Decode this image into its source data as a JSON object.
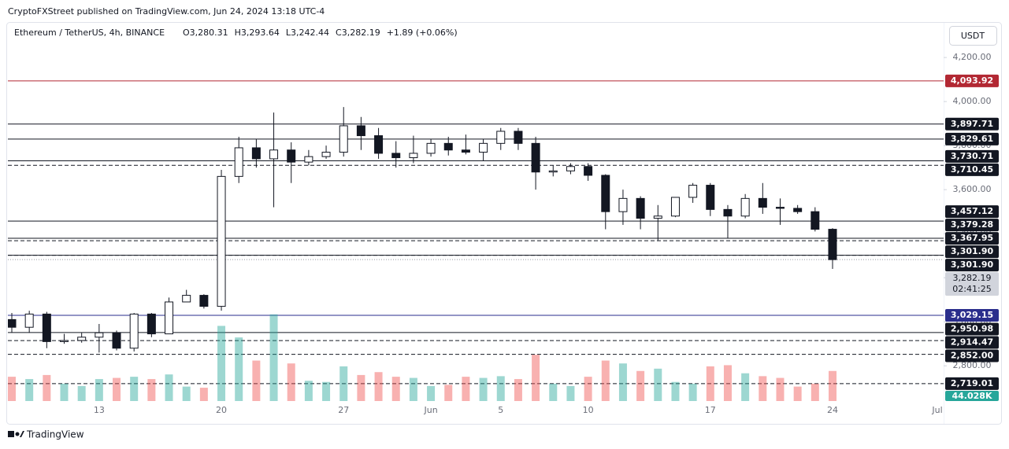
{
  "attribution": "CryptoFXStreet published on TradingView.com, Jun 24, 2024 13:18 UTC-4",
  "currency_button": "USDT",
  "footer": "TradingView",
  "chart_data": {
    "type": "candlestick",
    "symbol": "Ethereum / TetherUS, 4h, BINANCE",
    "ohlc_text": [
      "O3,280.31",
      "H3,293.64",
      "L3,242.44",
      "C3,282.19",
      "+1.89 (+0.06%)"
    ],
    "categories": [
      null,
      null,
      null,
      null,
      null,
      "13",
      null,
      null,
      null,
      null,
      null,
      null,
      "20",
      null,
      null,
      null,
      null,
      null,
      null,
      "27",
      null,
      null,
      null,
      null,
      "Jun",
      null,
      null,
      null,
      "5",
      null,
      null,
      null,
      null,
      "10",
      null,
      null,
      null,
      null,
      null,
      null,
      "17",
      null,
      null,
      null,
      null,
      null,
      null,
      "24",
      null,
      null,
      null,
      null,
      null,
      "Jul"
    ],
    "open": [
      3010,
      2975,
      3035,
      2910,
      2915,
      2930,
      2950,
      2880,
      3035,
      2945,
      3090,
      3120,
      3070,
      3660,
      3790,
      3740,
      3780,
      3725,
      3750,
      3770,
      3890,
      3845,
      3765,
      3745,
      3765,
      3810,
      3780,
      3770,
      3810,
      3865,
      3810,
      3680,
      3685,
      3705,
      3665,
      3500,
      3560,
      3470,
      3480,
      3565,
      3620,
      3510,
      3480,
      3560,
      3520,
      3515,
      3500,
      3420,
      null,
      null,
      null,
      null,
      null,
      null
    ],
    "high": [
      3040,
      3050,
      3045,
      2945,
      2950,
      2990,
      2960,
      3040,
      3040,
      3110,
      3145,
      3125,
      3690,
      3840,
      3830,
      3950,
      3815,
      3780,
      3800,
      3975,
      3930,
      3880,
      3820,
      3845,
      3830,
      3840,
      3850,
      3830,
      3880,
      3880,
      3840,
      3710,
      3720,
      3720,
      3670,
      3600,
      3570,
      3530,
      3560,
      3630,
      3630,
      3530,
      3580,
      3630,
      3560,
      3530,
      3520,
      3425,
      null,
      null,
      null,
      null,
      null,
      null
    ],
    "low": [
      2950,
      2950,
      2880,
      2900,
      2905,
      2860,
      2870,
      2865,
      2930,
      2945,
      3090,
      3060,
      3050,
      3630,
      3700,
      3520,
      3630,
      3710,
      3740,
      3750,
      3780,
      3740,
      3700,
      3720,
      3750,
      3755,
      3760,
      3730,
      3780,
      3780,
      3600,
      3660,
      3670,
      3640,
      3420,
      3440,
      3420,
      3370,
      3475,
      3540,
      3480,
      3380,
      3470,
      3490,
      3440,
      3490,
      3410,
      3240,
      null,
      null,
      null,
      null,
      null,
      null
    ],
    "close": [
      2975,
      3035,
      2910,
      2915,
      2930,
      2950,
      2880,
      3035,
      2945,
      3090,
      3120,
      3070,
      3660,
      3790,
      3740,
      3780,
      3725,
      3750,
      3770,
      3890,
      3845,
      3765,
      3745,
      3765,
      3810,
      3780,
      3770,
      3810,
      3865,
      3810,
      3680,
      3685,
      3705,
      3665,
      3500,
      3560,
      3470,
      3480,
      3565,
      3620,
      3510,
      3480,
      3560,
      3520,
      3515,
      3500,
      3420,
      3282.19,
      null,
      null,
      null,
      null,
      null,
      null
    ],
    "volume": [
      420,
      380,
      450,
      300,
      260,
      380,
      400,
      420,
      380,
      460,
      250,
      230,
      1300,
      1100,
      700,
      1500,
      650,
      350,
      330,
      600,
      450,
      500,
      420,
      400,
      260,
      280,
      420,
      400,
      430,
      380,
      800,
      300,
      260,
      420,
      700,
      650,
      520,
      560,
      330,
      300,
      600,
      620,
      480,
      430,
      400,
      250,
      300,
      520,
      null,
      null,
      null,
      null,
      null,
      null
    ],
    "volume_label": "44.028K",
    "up_color": "#26a69a",
    "down_color": "#ef5350",
    "ylim": [
      2640,
      4354
    ],
    "volume_ylim": [
      0,
      1700
    ],
    "yticks": [
      {
        "value": 2800,
        "label": "2,800.00"
      },
      {
        "value": 3000,
        "label": "3,000.00"
      },
      {
        "value": 3200,
        "label": "3,200.00"
      },
      {
        "value": 3400,
        "label": "3,400.00"
      },
      {
        "value": 3600,
        "label": "3,600.00"
      },
      {
        "value": 3800,
        "label": "3,800.00"
      },
      {
        "value": 4000,
        "label": "4,000.00"
      },
      {
        "value": 4200,
        "label": "4,200.00"
      }
    ],
    "grid": false,
    "levels": [
      {
        "value": 4093.92,
        "label": "4,093.92",
        "color": "#b22833",
        "style": "solid"
      },
      {
        "value": 3897.71,
        "label": "3,897.71",
        "color": "#131722",
        "style": "solid"
      },
      {
        "value": 3829.61,
        "label": "3,829.61",
        "color": "#131722",
        "style": "solid"
      },
      {
        "value": 3730.71,
        "label": "3,730.71",
        "color": "#131722",
        "style": "solid"
      },
      {
        "value": 3710.45,
        "label": "3,710.45",
        "color": "#131722",
        "style": "dashed"
      },
      {
        "value": 3457.12,
        "label": "3,457.12",
        "color": "#131722",
        "style": "solid"
      },
      {
        "value": 3379.28,
        "label": "3,379.28",
        "color": "#131722",
        "style": "solid"
      },
      {
        "value": 3367.95,
        "label": "3,367.95",
        "color": "#131722",
        "style": "dashed"
      },
      {
        "value": 3301.9,
        "label": "3,301.90",
        "color": "#131722",
        "style": "dashed"
      },
      {
        "value": 3301.9,
        "label": "3,301.90",
        "color": "#131722",
        "style": "solid"
      },
      {
        "value": 3029.15,
        "label": "3,029.15",
        "color": "#2a2e8c",
        "style": "solid"
      },
      {
        "value": 2950.98,
        "label": "2,950.98",
        "color": "#131722",
        "style": "solid"
      },
      {
        "value": 2914.47,
        "label": "2,914.47",
        "color": "#131722",
        "style": "dashed"
      },
      {
        "value": 2852.0,
        "label": "2,852.00",
        "color": "#131722",
        "style": "dashed"
      },
      {
        "value": 2719.01,
        "label": "2,719.01",
        "color": "#131722",
        "style": "dashed"
      }
    ],
    "current_price": {
      "value": 3282.19,
      "label": "3,282.19",
      "countdown": "02:41:25"
    }
  }
}
